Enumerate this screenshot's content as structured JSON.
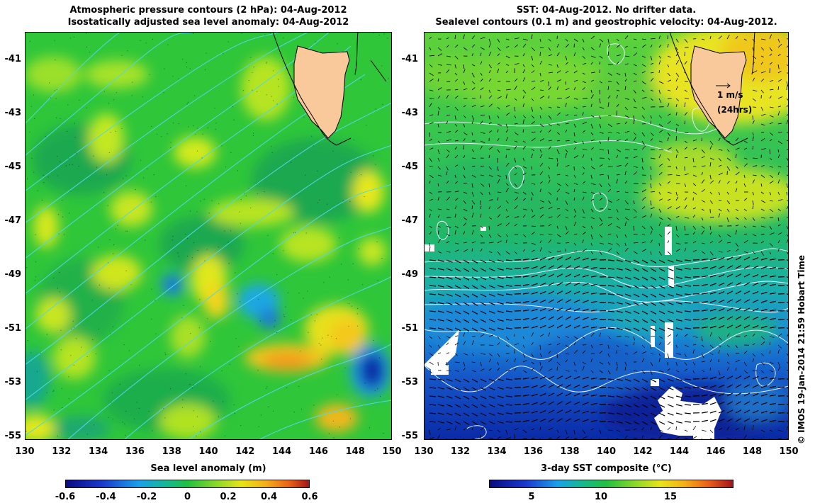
{
  "left_panel": {
    "title_line1": "Atmospheric pressure contours (2 hPa): 04-Aug-2012",
    "title_line2": "Isostatically adjusted sea level anomaly: 04-Aug-2012",
    "x_axis_title": "Sea level anomaly (m)",
    "colorbar_ticks": [
      "-0.6",
      "-0.4",
      "-0.2",
      "0",
      "0.2",
      "0.4",
      "0.6"
    ]
  },
  "right_panel": {
    "title_line1": "SST: 04-Aug-2012. No drifter data.",
    "title_line2": "Sealevel contours (0.1 m) and geostrophic velocity: 04-Aug-2012.",
    "x_axis_title": "3-day SST composite (°C)",
    "colorbar_ticks": [
      "5",
      "10",
      "15"
    ],
    "velocity_scale_label": "1 m/s",
    "velocity_scale_period": "(24hrs)"
  },
  "lat_ticks": [
    "-41",
    "-43",
    "-45",
    "-47",
    "-49",
    "-51",
    "-53",
    "-55"
  ],
  "lon_ticks": [
    "130",
    "132",
    "134",
    "136",
    "138",
    "140",
    "142",
    "144",
    "146",
    "148",
    "150"
  ],
  "credit": "© IMOS 19-Jan-2014 21:59 Hobart Time",
  "colors": {
    "land": "#f9c89b",
    "sla_base": "#33cc33",
    "sst_base": "#22bb66"
  }
}
